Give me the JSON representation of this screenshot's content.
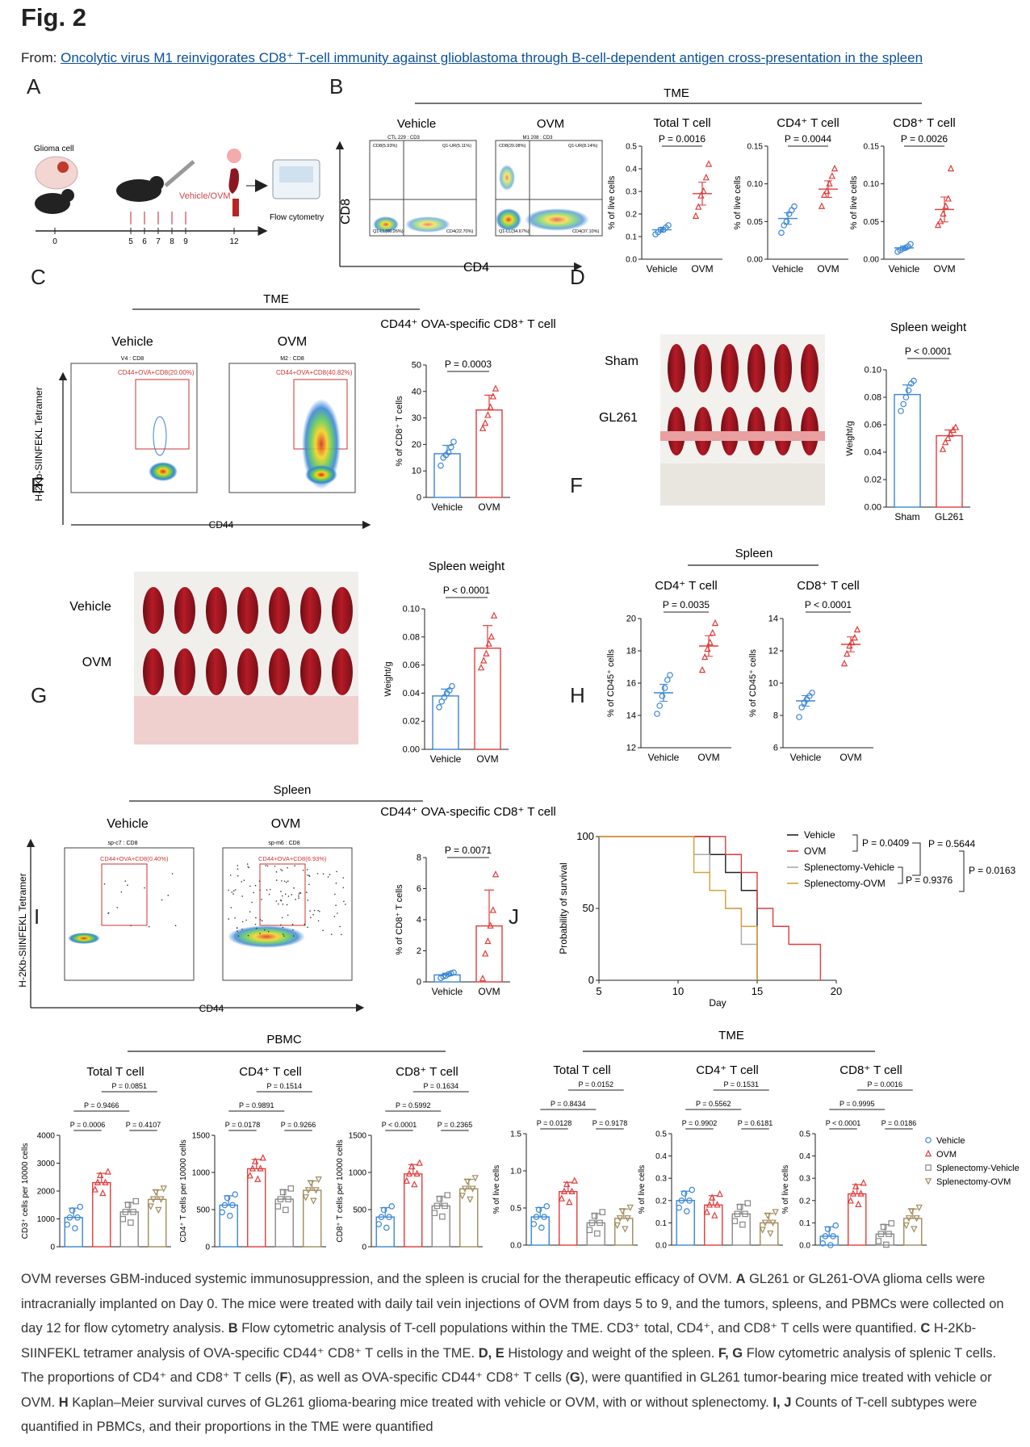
{
  "header": {
    "fig_label": "Fig. 2",
    "from_prefix": "From: ",
    "from_link": "Oncolytic virus M1 reinvigorates CD8⁺ T-cell immunity against glioblastoma through B-cell-dependent antigen cross-presentation in the spleen"
  },
  "panels": {
    "A": {
      "letter": "A",
      "glioma": "Glioma cell",
      "treatment": "Vehicle/OVM",
      "flow": "Flow cytometry",
      "days": [
        "0",
        "5",
        "6",
        "7",
        "8",
        "9",
        "12"
      ]
    },
    "B": {
      "letter": "B",
      "group": "TME",
      "vehicle": "Vehicle",
      "ovm": "OVM",
      "x_axis": "CD4",
      "y_axis": "CD8",
      "gates_vehicle": [
        "CD8(5.93%)",
        "Q1-UR(5.11%)",
        "Q1-LL(66.26%)",
        "CD4(22.70%)"
      ],
      "gates_ovm": [
        "CD8(20.08%)",
        "Q1-UR(8.14%)",
        "Q1-LL(34.67%)",
        "CD4(37.10%)"
      ],
      "plot_title_vehicle": "CTL 229 : CD3",
      "plot_title_ovm": "M1 208 : CD3"
    },
    "C": {
      "letter": "C",
      "group": "TME",
      "vehicle": "Vehicle",
      "ovm": "OVM",
      "x_axis": "CD44",
      "y_axis": "H-2Kb-SIINFEKL Tetramer",
      "gate_vehicle": "CD44+OVA+CD8(20.00%)",
      "gate_ovm": "CD44+OVA+CD8(40.82%)",
      "plot_title_vehicle": "V4 : CD8",
      "plot_title_ovm": "M2 : CD8"
    },
    "D": {
      "letter": "D",
      "sham": "Sham",
      "gl261": "GL261"
    },
    "E": {
      "letter": "E",
      "vehicle": "Vehicle",
      "ovm": "OVM"
    },
    "F": {
      "letter": "F",
      "group": "Spleen"
    },
    "G": {
      "letter": "G",
      "group": "Spleen",
      "vehicle": "Vehicle",
      "ovm": "OVM",
      "x_axis": "CD44",
      "y_axis": "H-2Kb-SIINFEKL Tetramer",
      "gate_vehicle": "CD44+OVA+CD8(0.40%)",
      "gate_ovm": "CD44+OVA+CD8(6.93%)",
      "plot_title_vehicle": "sp-c7 : CD8",
      "plot_title_ovm": "sp-m6 : CD8"
    },
    "H": {
      "letter": "H"
    },
    "I": {
      "letter": "I",
      "group": "PBMC"
    },
    "J": {
      "letter": "J",
      "group": "TME"
    }
  },
  "chart_data": [
    {
      "id": "B1",
      "type": "scatter",
      "title": "Total T cell",
      "pvalue": "P = 0.0016",
      "ylabel": "% of live cells",
      "ylim": [
        0,
        0.5
      ],
      "yticks": [
        "0.0",
        "0.1",
        "0.2",
        "0.3",
        "0.4",
        "0.5"
      ],
      "categories": [
        "Vehicle",
        "OVM"
      ],
      "means": [
        0.13,
        0.29
      ],
      "points": [
        [
          0.11,
          0.12,
          0.13,
          0.13,
          0.14,
          0.15
        ],
        [
          0.19,
          0.23,
          0.28,
          0.3,
          0.36,
          0.42
        ]
      ]
    },
    {
      "id": "B2",
      "type": "scatter",
      "title": "CD4⁺ T cell",
      "pvalue": "P = 0.0044",
      "ylabel": "% of live cells",
      "ylim": [
        0,
        0.15
      ],
      "yticks": [
        "0.00",
        "0.05",
        "0.10",
        "0.15"
      ],
      "categories": [
        "Vehicle",
        "OVM"
      ],
      "means": [
        0.054,
        0.093
      ],
      "points": [
        [
          0.035,
          0.045,
          0.05,
          0.06,
          0.065,
          0.07
        ],
        [
          0.07,
          0.085,
          0.09,
          0.1,
          0.11,
          0.12
        ]
      ]
    },
    {
      "id": "B3",
      "type": "scatter",
      "title": "CD8⁺ T cell",
      "pvalue": "P = 0.0026",
      "ylabel": "% of live cells",
      "ylim": [
        0,
        0.15
      ],
      "yticks": [
        "0.00",
        "0.05",
        "0.10",
        "0.15"
      ],
      "categories": [
        "Vehicle",
        "OVM"
      ],
      "means": [
        0.015,
        0.066
      ],
      "points": [
        [
          0.01,
          0.012,
          0.014,
          0.015,
          0.017,
          0.02
        ],
        [
          0.045,
          0.05,
          0.06,
          0.07,
          0.08,
          0.12
        ]
      ]
    },
    {
      "id": "C1",
      "type": "bar",
      "title": "CD44⁺ OVA-specific CD8⁺ T cell",
      "pvalue": "P = 0.0003",
      "ylabel": "% of CD8⁺ T cells",
      "ylim": [
        0,
        50
      ],
      "yticks": [
        "0",
        "10",
        "20",
        "30",
        "40",
        "50"
      ],
      "categories": [
        "Vehicle",
        "OVM"
      ],
      "means": [
        16.5,
        33
      ],
      "points": [
        [
          12,
          15,
          16,
          17,
          19,
          21
        ],
        [
          26,
          28,
          31,
          34,
          38,
          41
        ]
      ]
    },
    {
      "id": "D1",
      "type": "bar",
      "title": "Spleen weight",
      "pvalue": "P < 0.0001",
      "ylabel": "Weight/g",
      "ylim": [
        0,
        0.1
      ],
      "yticks": [
        "0.00",
        "0.02",
        "0.04",
        "0.06",
        "0.08",
        "0.10"
      ],
      "categories": [
        "Sham",
        "GL261"
      ],
      "means": [
        0.082,
        0.052
      ],
      "points": [
        [
          0.07,
          0.075,
          0.08,
          0.085,
          0.09,
          0.092
        ],
        [
          0.042,
          0.047,
          0.05,
          0.053,
          0.056,
          0.058
        ]
      ]
    },
    {
      "id": "E1",
      "type": "bar",
      "title": "Spleen weight",
      "pvalue": "P < 0.0001",
      "ylabel": "Weight/g",
      "ylim": [
        0,
        0.1
      ],
      "yticks": [
        "0.00",
        "0.02",
        "0.04",
        "0.06",
        "0.08",
        "0.10"
      ],
      "categories": [
        "Vehicle",
        "OVM"
      ],
      "means": [
        0.038,
        0.072
      ],
      "points": [
        [
          0.03,
          0.034,
          0.037,
          0.04,
          0.042,
          0.045
        ],
        [
          0.058,
          0.063,
          0.068,
          0.075,
          0.08,
          0.095
        ]
      ]
    },
    {
      "id": "F1",
      "type": "scatter",
      "title": "CD4⁺ T cell",
      "pvalue": "P = 0.0035",
      "ylabel": "% of CD45⁺ cells",
      "ylim": [
        12,
        20
      ],
      "yticks": [
        "12",
        "14",
        "16",
        "18",
        "20"
      ],
      "categories": [
        "Vehicle",
        "OVM"
      ],
      "means": [
        15.4,
        18.3
      ],
      "points": [
        [
          14.1,
          14.6,
          15.2,
          15.7,
          16.2,
          16.5
        ],
        [
          16.8,
          17.6,
          18.1,
          18.5,
          19.1,
          19.7
        ]
      ]
    },
    {
      "id": "F2",
      "type": "scatter",
      "title": "CD8⁺ T cell",
      "pvalue": "P < 0.0001",
      "ylabel": "% of CD45⁺ cells",
      "ylim": [
        6,
        14
      ],
      "yticks": [
        "6",
        "8",
        "10",
        "12",
        "14"
      ],
      "categories": [
        "Vehicle",
        "OVM"
      ],
      "means": [
        8.9,
        12.4
      ],
      "points": [
        [
          7.9,
          8.5,
          8.8,
          9.0,
          9.2,
          9.4
        ],
        [
          11.2,
          11.8,
          12.3,
          12.5,
          12.8,
          13.3
        ]
      ]
    },
    {
      "id": "G1",
      "type": "bar",
      "title": "CD44⁺ OVA-specific CD8⁺ T cell",
      "pvalue": "P = 0.0071",
      "ylabel": "% of CD8⁺ T cells",
      "ylim": [
        0,
        8
      ],
      "yticks": [
        "0",
        "2",
        "4",
        "6",
        "8"
      ],
      "categories": [
        "Vehicle",
        "OVM"
      ],
      "means": [
        0.45,
        3.6
      ],
      "points": [
        [
          0.25,
          0.35,
          0.4,
          0.5,
          0.55,
          0.6
        ],
        [
          0.2,
          1.8,
          2.6,
          3.6,
          4.6,
          6.9
        ]
      ]
    },
    {
      "id": "H1",
      "type": "line",
      "xlabel": "Day",
      "ylabel": "Probability of survival",
      "xlim": [
        5,
        20
      ],
      "ylim": [
        0,
        100
      ],
      "xticks": [
        "5",
        "10",
        "15",
        "20"
      ],
      "yticks": [
        "0",
        "50",
        "100"
      ],
      "series": [
        {
          "name": "Vehicle",
          "color": "#222222",
          "steps": [
            [
              5,
              100
            ],
            [
              12,
              100
            ],
            [
              12,
              87.5
            ],
            [
              13,
              87.5
            ],
            [
              13,
              75
            ],
            [
              14,
              75
            ],
            [
              14,
              62.5
            ],
            [
              15,
              62.5
            ],
            [
              15,
              37.5
            ],
            [
              15,
              0
            ],
            [
              15,
              0
            ]
          ]
        },
        {
          "name": "OVM",
          "color": "#e03c3c",
          "steps": [
            [
              5,
              100
            ],
            [
              13,
              100
            ],
            [
              13,
              87.5
            ],
            [
              14,
              87.5
            ],
            [
              14,
              75
            ],
            [
              15,
              75
            ],
            [
              15,
              50
            ],
            [
              16,
              50
            ],
            [
              16,
              37.5
            ],
            [
              17,
              37.5
            ],
            [
              17,
              25
            ],
            [
              19,
              25
            ],
            [
              19,
              0
            ]
          ]
        },
        {
          "name": "Splenectomy-Vehicle",
          "color": "#aaaaaa",
          "steps": [
            [
              5,
              100
            ],
            [
              11,
              100
            ],
            [
              11,
              87.5
            ],
            [
              12,
              87.5
            ],
            [
              12,
              62.5
            ],
            [
              13,
              62.5
            ],
            [
              13,
              50
            ],
            [
              14,
              50
            ],
            [
              14,
              25
            ],
            [
              15,
              25
            ],
            [
              15,
              0
            ]
          ]
        },
        {
          "name": "Splenectomy-OVM",
          "color": "#d9a13b",
          "steps": [
            [
              5,
              100
            ],
            [
              11,
              100
            ],
            [
              11,
              75
            ],
            [
              12,
              75
            ],
            [
              12,
              62.5
            ],
            [
              13,
              62.5
            ],
            [
              13,
              50
            ],
            [
              14,
              50
            ],
            [
              14,
              37.5
            ],
            [
              15,
              37.5
            ],
            [
              15,
              0
            ]
          ]
        }
      ],
      "pvalues": [
        "P = 0.0409",
        "P = 0.5644",
        "P = 0.9376",
        "P = 0.0163"
      ]
    },
    {
      "id": "I1",
      "type": "bar",
      "title": "Total T cell",
      "ylabel": "CD3⁺ cells per 10000 cells",
      "ylim": [
        0,
        4000
      ],
      "yticks": [
        "0",
        "1000",
        "2000",
        "3000",
        "4000"
      ],
      "categories": [
        "Vehicle",
        "OVM",
        "Splenectomy-Vehicle",
        "Splenectomy-OVM"
      ],
      "means": [
        1050,
        2300,
        1250,
        1700
      ],
      "pvalues": [
        "P = 0.0851",
        "P = 0.9466",
        "P = 0.0006",
        "P = 0.4107"
      ]
    },
    {
      "id": "I2",
      "type": "bar",
      "title": "CD4⁺ T cell",
      "ylabel": "CD4⁺ T cells per 10000 cells",
      "ylim": [
        0,
        1500
      ],
      "yticks": [
        "0",
        "500",
        "1000",
        "1500"
      ],
      "categories": [
        "Vehicle",
        "OVM",
        "Splenectomy-Vehicle",
        "Splenectomy-OVM"
      ],
      "means": [
        560,
        1050,
        640,
        760
      ],
      "pvalues": [
        "P = 0.1514",
        "P = 0.9891",
        "P = 0.0178",
        "P = 0.9266"
      ]
    },
    {
      "id": "I3",
      "type": "bar",
      "title": "CD8⁺ T cell",
      "ylabel": "CD8⁺ T cells per 10000 cells",
      "ylim": [
        0,
        1500
      ],
      "yticks": [
        "0",
        "500",
        "1000",
        "1500"
      ],
      "categories": [
        "Vehicle",
        "OVM",
        "Splenectomy-Vehicle",
        "Splenectomy-OVM"
      ],
      "means": [
        400,
        980,
        550,
        780
      ],
      "pvalues": [
        "P = 0.1634",
        "P = 0.5992",
        "P < 0.0001",
        "P = 0.2365"
      ]
    },
    {
      "id": "J1",
      "type": "bar",
      "title": "Total T cell",
      "ylabel": "% of live cells",
      "ylim": [
        0,
        1.5
      ],
      "yticks": [
        "0.0",
        "0.5",
        "1.0",
        "1.5"
      ],
      "categories": [
        "Vehicle",
        "OVM",
        "Splenectomy-Vehicle",
        "Splenectomy-OVM"
      ],
      "means": [
        0.38,
        0.72,
        0.3,
        0.36
      ],
      "pvalues": [
        "P = 0.0152",
        "P = 0.8434",
        "P = 0.0128",
        "P = 0.9178"
      ]
    },
    {
      "id": "J2",
      "type": "bar",
      "title": "CD4⁺ T cell",
      "ylabel": "% of live cells",
      "ylim": [
        0,
        0.5
      ],
      "yticks": [
        "0.0",
        "0.1",
        "0.2",
        "0.3",
        "0.4",
        "0.5"
      ],
      "categories": [
        "Vehicle",
        "OVM",
        "Splenectomy-Vehicle",
        "Splenectomy-OVM"
      ],
      "means": [
        0.2,
        0.18,
        0.14,
        0.1
      ],
      "pvalues": [
        "P = 0.1531",
        "P = 0.5562",
        "P = 0.9902",
        "P = 0.6181"
      ]
    },
    {
      "id": "J3",
      "type": "bar",
      "title": "CD8⁺ T cell",
      "ylabel": "% of live cells",
      "ylim": [
        0,
        0.5
      ],
      "yticks": [
        "0.0",
        "0.1",
        "0.2",
        "0.3",
        "0.4",
        "0.5"
      ],
      "categories": [
        "Vehicle",
        "OVM",
        "Splenectomy-Vehicle",
        "Splenectomy-OVM"
      ],
      "means": [
        0.04,
        0.23,
        0.05,
        0.12
      ],
      "pvalues": [
        "P = 0.0016",
        "P = 0.9995",
        "P < 0.0001",
        "P = 0.0186"
      ],
      "legend": [
        "Vehicle",
        "OVM",
        "Splenectomy-Vehicle",
        "Splenectomy-OVM"
      ]
    }
  ],
  "colors": {
    "blue": "#3a86d6",
    "red": "#e03c3c",
    "gray": "#888888",
    "tan": "#a08b5e"
  },
  "caption": {
    "p1": "OVM reverses GBM-induced systemic immunosuppression, and the spleen is crucial for the therapeutic efficacy of OVM. ",
    "a": "A",
    "p2": " GL261 or GL261-OVA glioma cells were intracranially implanted on Day 0. The mice were treated with daily tail vein injections of OVM from days 5 to 9, and the tumors, spleens, and PBMCs were collected on day 12 for flow cytometry analysis. ",
    "b": "B",
    "p3": " Flow cytometric analysis of T-cell populations within the TME. CD3⁺ total, CD4⁺, and CD8⁺ T cells were quantified. ",
    "c": "C",
    "p4": " H-2Kb-SIINFEKL tetramer analysis of OVA-specific CD44⁺ CD8⁺ T cells in the TME. ",
    "de": "D, E",
    "p5": " Histology and weight of the spleen. ",
    "fg": "F, G",
    "p6": " Flow cytometric analysis of splenic T cells. The proportions of CD4⁺ and CD8⁺ T cells (",
    "f": "F",
    "p7": "), as well as OVA-specific CD44⁺ CD8⁺ T cells (",
    "g": "G",
    "p8": "), were quantified in GL261 tumor-bearing mice treated with vehicle or OVM. ",
    "h": "H",
    "p9": " Kaplan–Meier survival curves of GL261 glioma-bearing mice treated with vehicle or OVM, with or without splenectomy. ",
    "ij": "I, J",
    "p10": " Counts of T-cell subtypes were quantified in PBMCs, and their proportions in the TME were quantified"
  }
}
